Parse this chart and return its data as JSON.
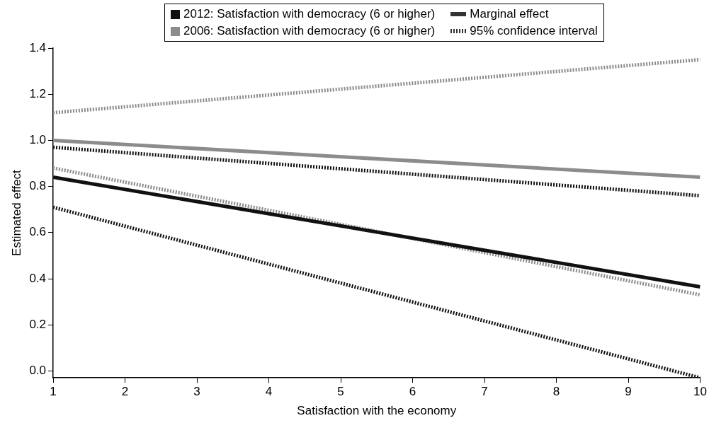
{
  "chart_data": {
    "type": "line",
    "xlabel": "Satisfaction with the economy",
    "ylabel": "Estimated effect",
    "x": [
      1,
      10
    ],
    "xlim": [
      1,
      10
    ],
    "xticks": [
      1,
      2,
      3,
      4,
      5,
      6,
      7,
      8,
      9,
      10
    ],
    "ylim": [
      -0.03,
      1.4
    ],
    "yticks": [
      {
        "value": 0,
        "label": "0.0"
      },
      0.2,
      0.4,
      0.6,
      0.8,
      {
        "value": 1,
        "label": "1.0"
      },
      1.2,
      1.4
    ],
    "series": [
      {
        "name": "2012: Satisfaction with democracy (6 or higher)",
        "color": "#111111",
        "values": [
          0.84,
          0.365
        ]
      },
      {
        "color": "#111111",
        "values": [
          0.71,
          -0.03
        ],
        "line_style": "dotted"
      },
      {
        "color": "#111111",
        "values": [
          0.97,
          0.76
        ],
        "line_style": "dotted"
      },
      {
        "name": "2006: Satisfaction with democracy (6 or higher)",
        "color": "#8c8c8c",
        "values": [
          1.0,
          0.84
        ]
      },
      {
        "color": "#8c8c8c",
        "values": [
          0.88,
          0.33
        ],
        "line_style": "dotted"
      },
      {
        "color": "#8c8c8c",
        "values": [
          1.12,
          1.35
        ],
        "line_style": "dotted"
      }
    ],
    "annotations": [
      "Marginal effect",
      "95% confidence interval"
    ],
    "legend": "top",
    "grid": false,
    "line_style": "solid",
    "marker": "none"
  }
}
